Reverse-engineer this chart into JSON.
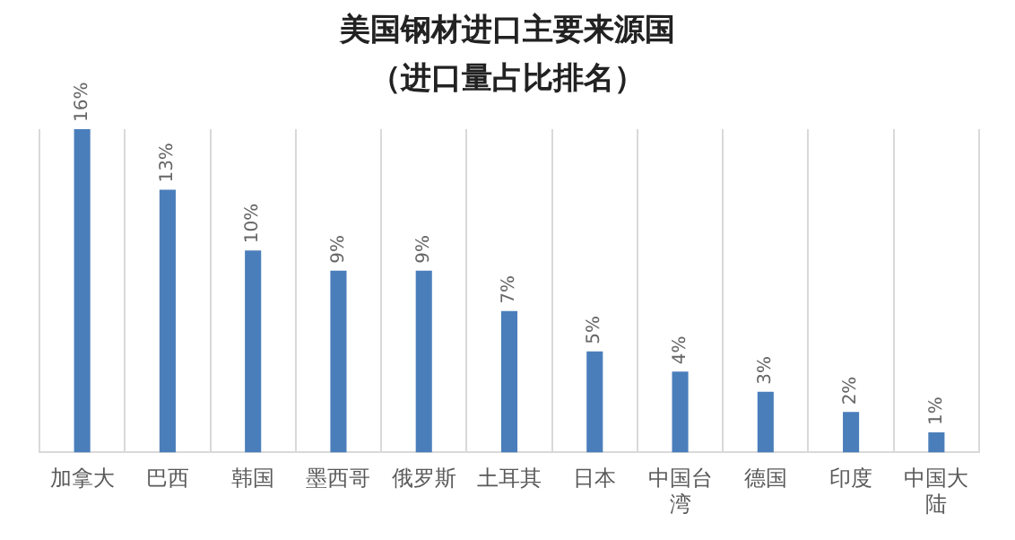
{
  "chart_data": {
    "type": "bar",
    "title": "美国钢材进口主要来源国",
    "subtitle": "（进口量占比排名）",
    "categories": [
      "加拿大",
      "巴西",
      "韩国",
      "墨西哥",
      "俄罗斯",
      "土耳其",
      "日本",
      "中国台湾",
      "德国",
      "印度",
      "中国大陆"
    ],
    "values": [
      16,
      13,
      10,
      9,
      9,
      7,
      5,
      4,
      3,
      2,
      1
    ],
    "value_labels": [
      "16%",
      "13%",
      "10%",
      "9%",
      "9%",
      "7%",
      "5%",
      "4%",
      "3%",
      "2%",
      "1%"
    ],
    "color": "#4a7ebb",
    "grid": "x",
    "tick_labels": "x",
    "legend": false
  }
}
